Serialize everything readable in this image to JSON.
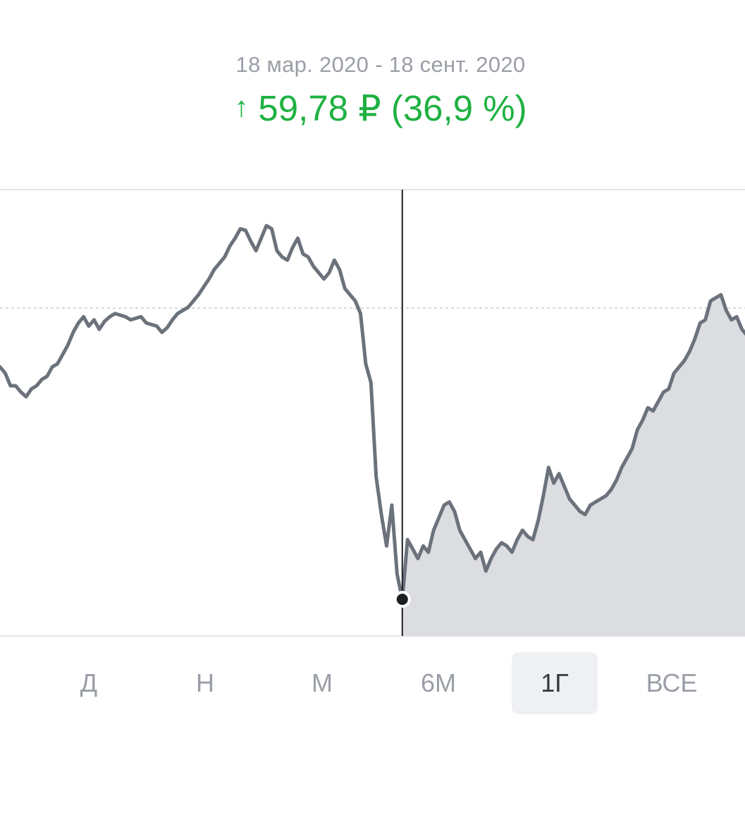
{
  "header": {
    "date_range": "18 мар. 2020 - 18 сент. 2020",
    "change_arrow": "↑",
    "change_text": "59,78 ₽ (36,9 %)",
    "change_color": "#1fb141"
  },
  "chart_data": {
    "type": "area",
    "series_color": "#6b727b",
    "selected_area_fill": "#dcdde1",
    "grid": "single dashed reference line",
    "selected_range": [
      "18 мар. 2020",
      "18 сент. 2020"
    ],
    "values": [
      70,
      66,
      58,
      58,
      54,
      51,
      56,
      58,
      62,
      64,
      70,
      72,
      78,
      84,
      92,
      98,
      102,
      96,
      100,
      94,
      99,
      102,
      104,
      103,
      102,
      100,
      101,
      102,
      98,
      97,
      96,
      92,
      95,
      100,
      104,
      106,
      108,
      112,
      116,
      121,
      126,
      132,
      136,
      140,
      147,
      152,
      158,
      157,
      150,
      144,
      152,
      160,
      158,
      144,
      140,
      138,
      146,
      152,
      142,
      140,
      134,
      130,
      126,
      130,
      138,
      132,
      120,
      116,
      112,
      104,
      72,
      60,
      0,
      -24,
      -44,
      -18,
      -62,
      -78,
      -40,
      -46,
      -52,
      -44,
      -48,
      -34,
      -26,
      -18,
      -16,
      -22,
      -34,
      -40,
      -46,
      -52,
      -48,
      -60,
      -52,
      -46,
      -42,
      -44,
      -48,
      -40,
      -34,
      -38,
      -40,
      -28,
      -12,
      6,
      -4,
      2,
      -6,
      -14,
      -18,
      -22,
      -24,
      -18,
      -16,
      -14,
      -12,
      -8,
      -2,
      6,
      12,
      18,
      30,
      36,
      44,
      42,
      48,
      54,
      56,
      66,
      70,
      74,
      80,
      88,
      98,
      100,
      112,
      114,
      116,
      106,
      100,
      102,
      94,
      90
    ]
  },
  "periods": {
    "items": [
      {
        "label": "Д",
        "active": false
      },
      {
        "label": "Н",
        "active": false
      },
      {
        "label": "М",
        "active": false
      },
      {
        "label": "6М",
        "active": false
      },
      {
        "label": "1Г",
        "active": true
      },
      {
        "label": "ВСЕ",
        "active": false
      }
    ]
  }
}
